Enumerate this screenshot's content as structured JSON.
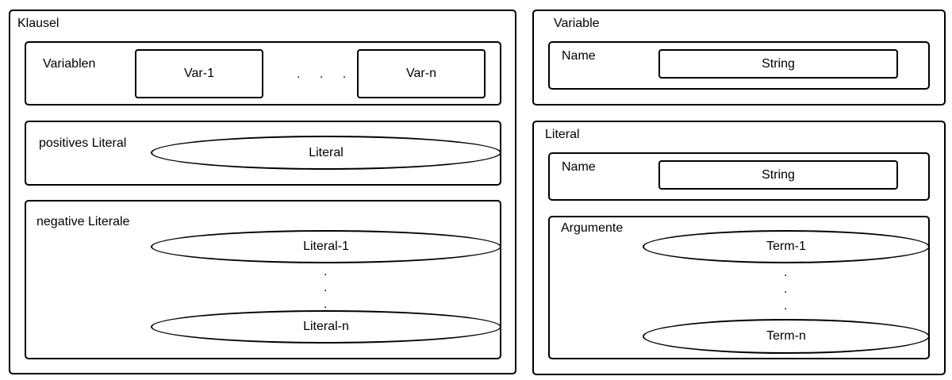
{
  "klausel": {
    "title": "Klausel",
    "variablen": {
      "label": "Variablen",
      "first": "Var-1",
      "ellipsis": ". . .",
      "last": "Var-n"
    },
    "positives": {
      "label": "positives Literal",
      "value": "Literal"
    },
    "negative": {
      "label": "negative Literale",
      "first": "Literal-1",
      "dot": ".",
      "last": "Literal-n"
    }
  },
  "variable": {
    "title": "Variable",
    "name_label": "Name",
    "name_type": "String"
  },
  "literal": {
    "title": "Literal",
    "name_label": "Name",
    "name_type": "String",
    "argumente": {
      "label": "Argumente",
      "first": "Term-1",
      "dot": ".",
      "last": "Term-n"
    }
  }
}
